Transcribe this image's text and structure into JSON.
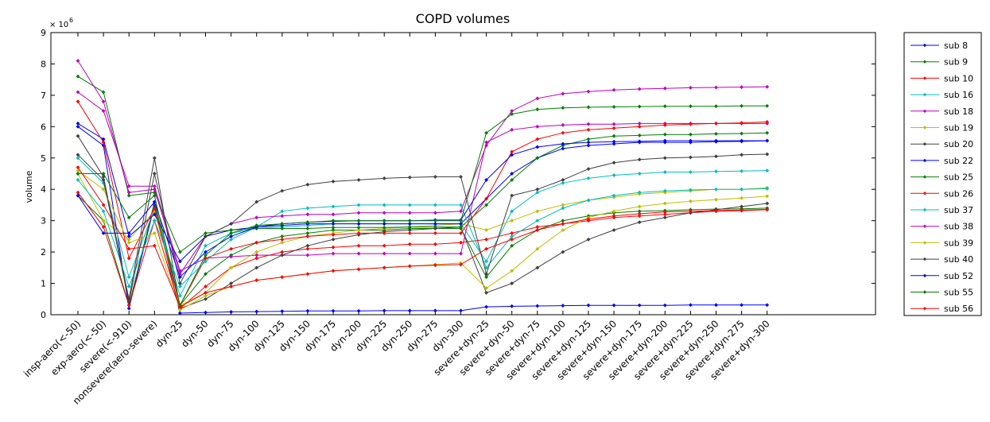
{
  "chart_data": {
    "type": "line",
    "title": "COPD volumes",
    "xlabel": "",
    "ylabel": "volume",
    "exponent_label": "× 10",
    "exponent": "6",
    "ylim": [
      0,
      9
    ],
    "yticks": [
      "0",
      "1",
      "2",
      "3",
      "4",
      "5",
      "6",
      "7",
      "8",
      "9"
    ],
    "grid": false,
    "legend_position": "right",
    "categories": [
      "insp-aero(<-50)",
      "exp-aero(<-50)",
      "severe(<-910)",
      "nonsevere(aero-severe)",
      "dyn-25",
      "dyn-50",
      "dyn-75",
      "dyn-100",
      "dyn-125",
      "dyn-150",
      "dyn-175",
      "dyn-200",
      "dyn-225",
      "dyn-250",
      "dyn-275",
      "dyn-300",
      "severe+dyn-25",
      "severe+dyn-50",
      "severe+dyn-75",
      "severe+dyn-100",
      "severe+dyn-125",
      "severe+dyn-150",
      "severe+dyn-175",
      "severe+dyn-200",
      "severe+dyn-225",
      "severe+dyn-250",
      "severe+dyn-275",
      "severe+dyn-300"
    ],
    "series": [
      {
        "name": "sub 8",
        "color": "#0000ff",
        "values": [
          6.0,
          5.4,
          0.2,
          3.5,
          0.05,
          0.07,
          0.09,
          0.1,
          0.11,
          0.12,
          0.12,
          0.12,
          0.13,
          0.13,
          0.13,
          0.13,
          0.25,
          0.27,
          0.28,
          0.29,
          0.3,
          0.3,
          0.3,
          0.3,
          0.31,
          0.31,
          0.31,
          0.31
        ]
      },
      {
        "name": "sub 9",
        "color": "#008000",
        "values": [
          3.8,
          3.0,
          0.3,
          3.6,
          0.3,
          1.3,
          1.9,
          2.3,
          2.5,
          2.6,
          2.7,
          2.7,
          2.7,
          2.75,
          2.75,
          2.75,
          1.2,
          2.2,
          2.7,
          3.0,
          3.15,
          3.25,
          3.3,
          3.32,
          3.35,
          3.37,
          3.38,
          3.4
        ]
      },
      {
        "name": "sub 10",
        "color": "#ff0000",
        "values": [
          3.9,
          2.8,
          0.3,
          3.0,
          0.2,
          0.9,
          1.5,
          1.8,
          2.0,
          2.1,
          2.15,
          2.2,
          2.2,
          2.25,
          2.25,
          2.3,
          2.4,
          2.6,
          2.8,
          2.9,
          3.0,
          3.1,
          3.15,
          3.2,
          3.25,
          3.3,
          3.32,
          3.35
        ]
      },
      {
        "name": "sub 16",
        "color": "#00bfbf",
        "values": [
          5.0,
          4.2,
          1.2,
          3.4,
          0.6,
          2.2,
          2.6,
          2.75,
          2.8,
          2.85,
          2.9,
          2.9,
          2.9,
          2.9,
          2.9,
          2.9,
          1.7,
          3.3,
          3.9,
          4.2,
          4.35,
          4.45,
          4.5,
          4.55,
          4.55,
          4.57,
          4.58,
          4.6
        ]
      },
      {
        "name": "sub 18",
        "color": "#bf00bf",
        "values": [
          7.1,
          6.5,
          4.1,
          4.1,
          1.4,
          1.8,
          1.85,
          1.9,
          1.9,
          1.9,
          1.95,
          1.95,
          1.95,
          1.95,
          1.95,
          1.95,
          5.5,
          5.9,
          6.0,
          6.05,
          6.08,
          6.08,
          6.1,
          6.1,
          6.1,
          6.1,
          6.1,
          6.1
        ]
      },
      {
        "name": "sub 19",
        "color": "#bfbf00",
        "values": [
          4.5,
          3.0,
          2.4,
          3.3,
          0.3,
          0.7,
          1.5,
          2.0,
          2.3,
          2.5,
          2.6,
          2.7,
          2.75,
          2.8,
          2.85,
          2.9,
          2.7,
          3.0,
          3.3,
          3.5,
          3.65,
          3.75,
          3.85,
          3.9,
          3.95,
          4.0,
          4.0,
          4.05
        ]
      },
      {
        "name": "sub 20",
        "color": "#404040",
        "values": [
          5.7,
          4.4,
          0.5,
          5.0,
          0.2,
          0.5,
          1.0,
          1.5,
          1.9,
          2.2,
          2.4,
          2.55,
          2.65,
          2.7,
          2.75,
          2.8,
          0.7,
          1.0,
          1.5,
          2.0,
          2.4,
          2.7,
          2.95,
          3.1,
          3.25,
          3.35,
          3.45,
          3.55
        ]
      },
      {
        "name": "sub 22",
        "color": "#0000ff",
        "values": [
          6.1,
          5.6,
          2.5,
          3.2,
          1.7,
          2.5,
          2.7,
          2.8,
          2.85,
          2.9,
          2.9,
          2.9,
          2.9,
          2.9,
          2.9,
          2.9,
          3.7,
          4.5,
          5.0,
          5.3,
          5.4,
          5.45,
          5.5,
          5.5,
          5.5,
          5.52,
          5.53,
          5.55
        ]
      },
      {
        "name": "sub 25",
        "color": "#008000",
        "values": [
          7.6,
          7.1,
          3.8,
          3.9,
          2.0,
          2.6,
          2.7,
          2.75,
          2.75,
          2.75,
          2.78,
          2.78,
          2.78,
          2.8,
          2.8,
          2.8,
          3.5,
          4.3,
          5.0,
          5.4,
          5.6,
          5.7,
          5.72,
          5.75,
          5.75,
          5.77,
          5.78,
          5.8
        ]
      },
      {
        "name": "sub 26",
        "color": "#ff0000",
        "values": [
          6.8,
          5.5,
          1.8,
          3.4,
          0.3,
          1.8,
          2.1,
          2.3,
          2.4,
          2.5,
          2.55,
          2.6,
          2.6,
          2.6,
          2.6,
          2.6,
          3.7,
          5.2,
          5.6,
          5.8,
          5.9,
          5.95,
          6.0,
          6.05,
          6.08,
          6.1,
          6.12,
          6.15
        ]
      },
      {
        "name": "sub 37",
        "color": "#00bfbf",
        "values": [
          4.3,
          3.3,
          0.9,
          3.0,
          0.9,
          1.7,
          2.4,
          2.8,
          3.3,
          3.4,
          3.45,
          3.5,
          3.5,
          3.5,
          3.5,
          3.5,
          1.5,
          2.5,
          3.0,
          3.4,
          3.65,
          3.8,
          3.9,
          3.95,
          3.98,
          4.0,
          4.0,
          4.02
        ]
      },
      {
        "name": "sub 38",
        "color": "#bf00bf",
        "values": [
          8.1,
          6.8,
          3.9,
          4.0,
          1.3,
          2.5,
          2.9,
          3.1,
          3.15,
          3.2,
          3.2,
          3.25,
          3.25,
          3.25,
          3.25,
          3.3,
          5.4,
          6.5,
          6.9,
          7.05,
          7.12,
          7.17,
          7.2,
          7.22,
          7.24,
          7.25,
          7.26,
          7.27
        ]
      },
      {
        "name": "sub 39",
        "color": "#bfbf00",
        "values": [
          4.6,
          4.0,
          2.3,
          2.6,
          0.15,
          0.6,
          0.9,
          1.1,
          1.2,
          1.3,
          1.4,
          1.45,
          1.5,
          1.55,
          1.6,
          1.65,
          0.85,
          1.4,
          2.1,
          2.7,
          3.1,
          3.3,
          3.45,
          3.55,
          3.62,
          3.67,
          3.72,
          3.78
        ]
      },
      {
        "name": "sub 40",
        "color": "#404040",
        "values": [
          5.1,
          4.3,
          0.4,
          4.5,
          1.0,
          2.5,
          2.9,
          3.6,
          3.95,
          4.15,
          4.25,
          4.3,
          4.35,
          4.38,
          4.4,
          4.4,
          1.3,
          3.8,
          4.0,
          4.3,
          4.65,
          4.85,
          4.95,
          5.0,
          5.02,
          5.05,
          5.1,
          5.12
        ]
      },
      {
        "name": "sub 52",
        "color": "#0000ff",
        "values": [
          3.8,
          2.6,
          2.6,
          3.6,
          1.2,
          2.0,
          2.5,
          2.8,
          2.9,
          2.95,
          2.98,
          3.0,
          3.0,
          3.0,
          3.02,
          3.02,
          4.3,
          5.1,
          5.35,
          5.45,
          5.5,
          5.52,
          5.53,
          5.55,
          5.55,
          5.55,
          5.55,
          5.55
        ]
      },
      {
        "name": "sub 55",
        "color": "#008000",
        "values": [
          4.5,
          4.5,
          3.1,
          3.8,
          0.3,
          1.9,
          2.6,
          2.85,
          2.9,
          2.95,
          3.0,
          3.0,
          3.0,
          3.0,
          3.0,
          3.0,
          5.8,
          6.4,
          6.55,
          6.6,
          6.62,
          6.63,
          6.64,
          6.65,
          6.65,
          6.65,
          6.66,
          6.66
        ]
      },
      {
        "name": "sub 56",
        "color": "#ff0000",
        "values": [
          4.7,
          3.5,
          2.1,
          2.2,
          0.25,
          0.7,
          0.9,
          1.1,
          1.2,
          1.3,
          1.4,
          1.45,
          1.5,
          1.55,
          1.58,
          1.6,
          2.1,
          2.4,
          2.7,
          2.9,
          3.05,
          3.15,
          3.22,
          3.28,
          3.3,
          3.32,
          3.34,
          3.36
        ]
      }
    ]
  }
}
